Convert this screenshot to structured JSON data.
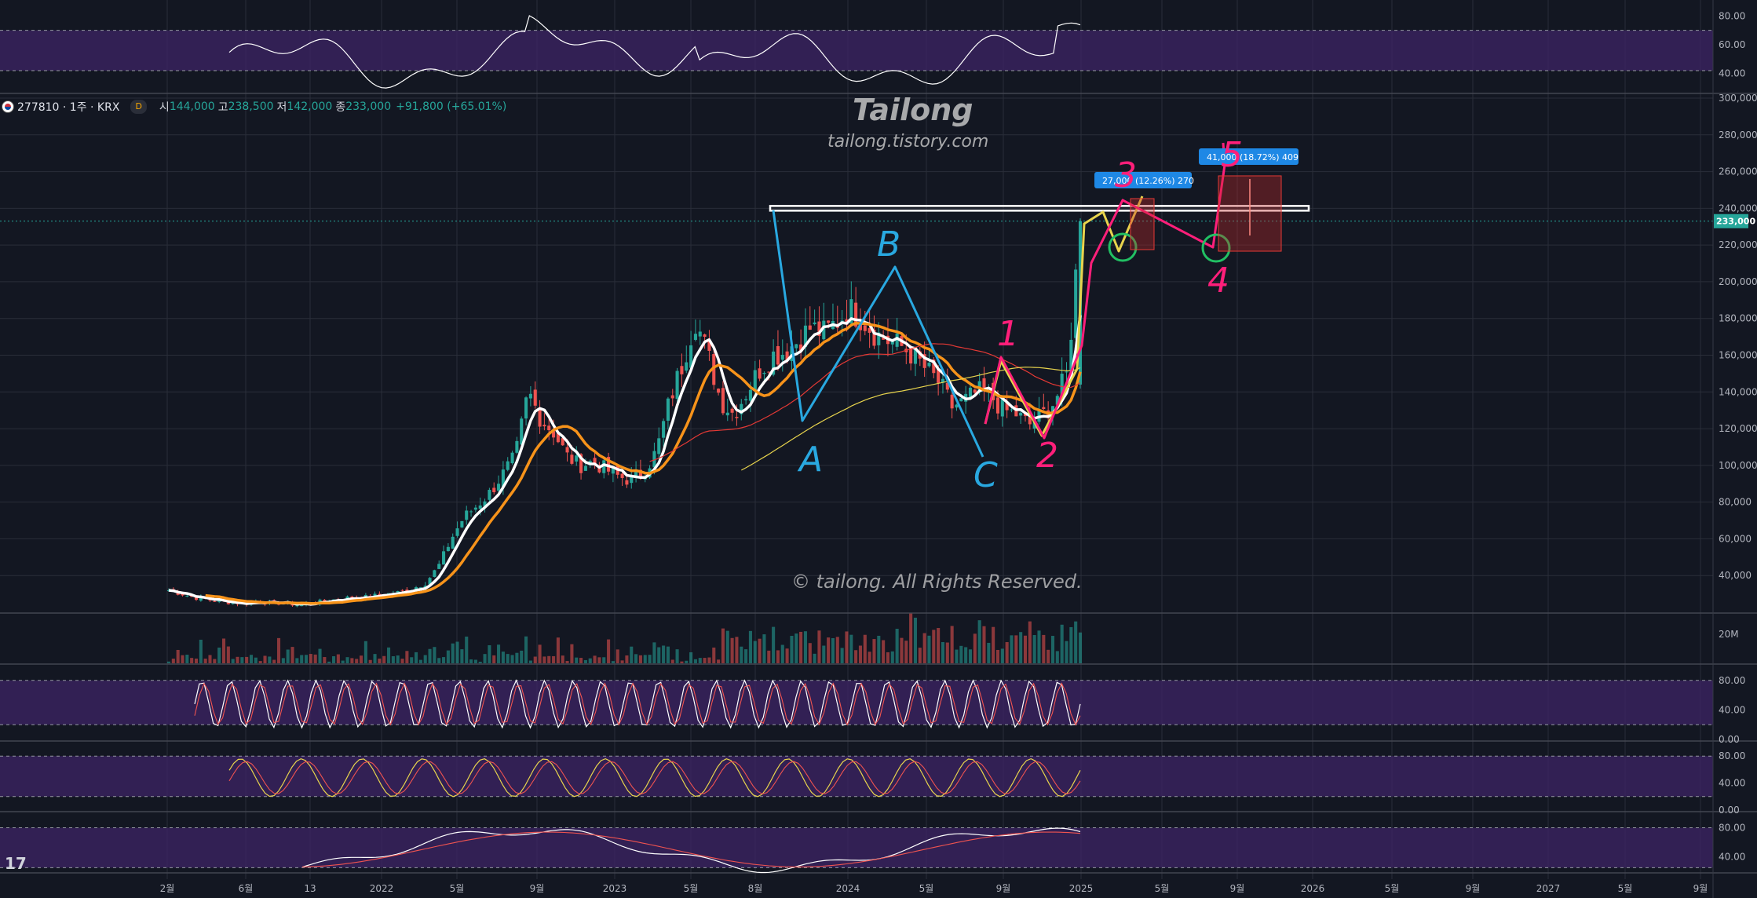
{
  "header": {
    "symbol": "277810 · 1주 · KRX",
    "interval_badge": "D",
    "open_label": "시",
    "open": "144,000",
    "high_label": "고",
    "high": "238,500",
    "low_label": "저",
    "low": "142,000",
    "close_label": "종",
    "close": "233,000",
    "change": "+91,800 (+65.01%)"
  },
  "watermarks": {
    "title": "Tailong",
    "site": "tailong.tistory.com",
    "copyright": "© tailong. All Rights Reserved."
  },
  "colors": {
    "background": "#131722",
    "grid": "#2a2e39",
    "up": "#26a69a",
    "down": "#ef5350",
    "ma_fast": "#ffffff",
    "ma_mid": "#f7931a",
    "ma_slow_red": "#e53935",
    "ma_long_yellow": "#e8d44d",
    "osc_band": "#3d2466",
    "price_badge": "#26a69a"
  },
  "chart_data": [
    {
      "type": "candlestick",
      "name": "price",
      "ylim": [
        20000,
        300000
      ],
      "y_ticks": [
        "300,000",
        "280,000",
        "260,000",
        "240,000",
        "220,000",
        "200,000",
        "180,000",
        "160,000",
        "140,000",
        "120,000",
        "100,000",
        "80,000",
        "60,000",
        "40,000"
      ],
      "x_ticks": [
        "2월",
        "6월",
        "13",
        "2022",
        "5월",
        "9월",
        "2023",
        "5월",
        "8월",
        "2024",
        "5월",
        "9월",
        "2025",
        "5월",
        "9월",
        "2026",
        "5월",
        "9월",
        "2027",
        "5월",
        "9월"
      ],
      "last_price_label": "233,000",
      "close_approx": [
        32000,
        30000,
        28000,
        27000,
        26000,
        25000,
        25000,
        26000,
        25000,
        25000,
        24000,
        25000,
        26000,
        27000,
        28000,
        28000,
        29000,
        30000,
        31000,
        33000,
        36000,
        45000,
        60000,
        72000,
        78000,
        85000,
        95000,
        105000,
        140000,
        125000,
        118000,
        105000,
        100000,
        102000,
        98000,
        94000,
        92000,
        96000,
        108000,
        135000,
        155000,
        180000,
        160000,
        135000,
        128000,
        140000,
        152000,
        160000,
        162000,
        168000,
        175000,
        172000,
        178000,
        185000,
        180000,
        172000,
        168000,
        165000,
        160000,
        152000,
        145000,
        132000,
        135000,
        140000,
        138000,
        130000,
        128000,
        122000,
        127000,
        135000,
        150000,
        233000
      ],
      "drawings": {
        "resistance_level": 240000,
        "wave_labels": [
          "A",
          "B",
          "C",
          "1",
          "2",
          "3",
          "4",
          "5"
        ],
        "measure_1": "27,000 (12.26%) 270",
        "measure_2": "41,000 (18.72%) 409"
      }
    },
    {
      "type": "bar",
      "name": "volume",
      "y_ticks": [
        "20M"
      ]
    },
    {
      "type": "line",
      "name": "oscillator-top",
      "ylim": [
        30,
        90
      ],
      "y_ticks": [
        "80.00",
        "60.00",
        "40.00"
      ]
    },
    {
      "type": "line",
      "name": "oscillator-1",
      "ylim": [
        0,
        100
      ],
      "y_ticks": [
        "80.00",
        "40.00",
        "0.00"
      ]
    },
    {
      "type": "line",
      "name": "oscillator-2",
      "ylim": [
        0,
        100
      ],
      "y_ticks": [
        "80.00",
        "40.00",
        "0.00"
      ]
    },
    {
      "type": "line",
      "name": "oscillator-3",
      "ylim": [
        20,
        100
      ],
      "y_ticks": [
        "80.00",
        "40.00"
      ]
    }
  ]
}
